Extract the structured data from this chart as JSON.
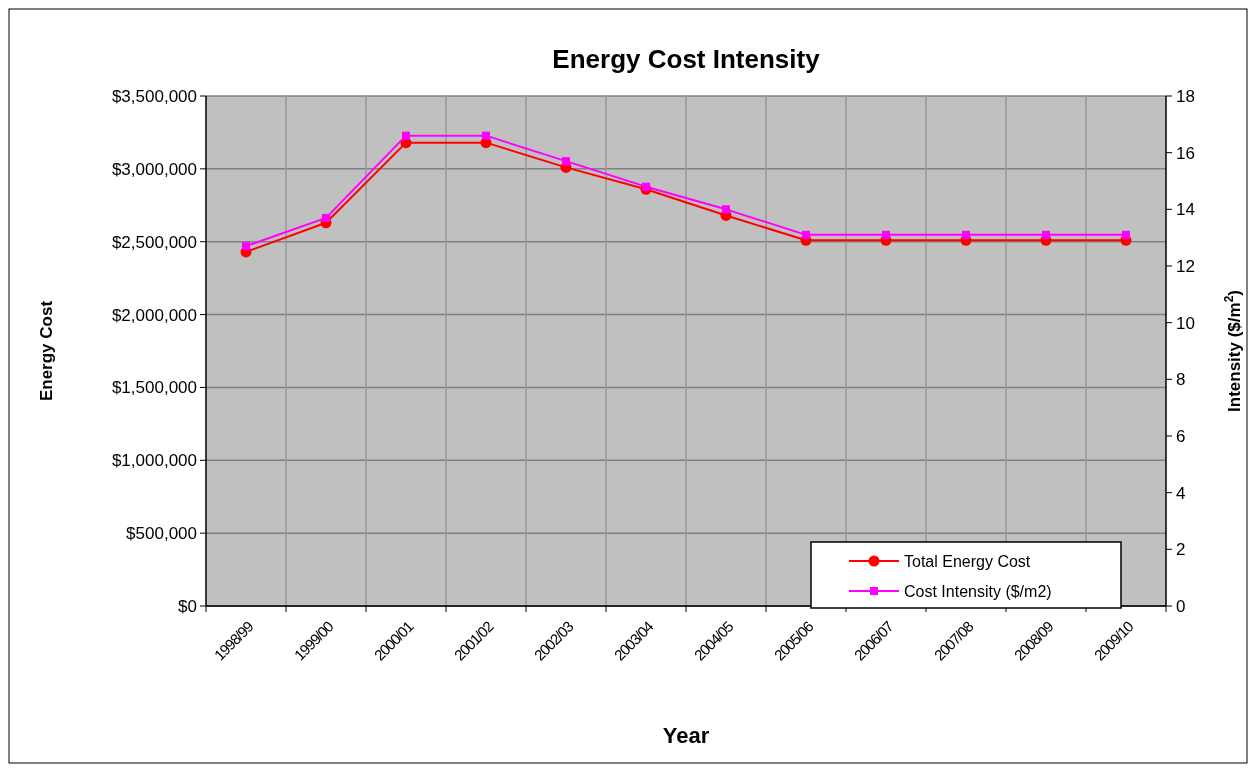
{
  "chart_data": {
    "type": "line",
    "title": "Energy Cost Intensity",
    "xlabel": "Year",
    "ylabel": "Energy Cost",
    "y2label": "Intensity ($/m$^{2}$)",
    "categories": [
      "1998/99",
      "1999/00",
      "2000/01",
      "2001/02",
      "2002/03",
      "2003/04",
      "2004/05",
      "2005/06",
      "2006/07",
      "2007/08",
      "2008/09",
      "2009/10"
    ],
    "series": [
      {
        "name": "Total Energy Cost",
        "color": "#ff0000",
        "marker": "circle",
        "values": [
          2430000,
          2630000,
          3180000,
          3180000,
          3010000,
          2860000,
          2680000,
          2510000,
          2510000,
          2510000,
          2510000,
          2510000
        ]
      },
      {
        "name": "Cost Intensity ($/m2)",
        "color": "#ff00ff",
        "marker": "square",
        "axis": "y2",
        "values": [
          12.7,
          13.7,
          16.6,
          16.6,
          15.7,
          14.8,
          14.0,
          13.1,
          13.1,
          13.1,
          13.1,
          13.1
        ]
      }
    ],
    "ylim": [
      0,
      3500000
    ],
    "yticks": [
      {
        "value": 0,
        "label": "$0"
      },
      {
        "value": 500000,
        "label": "$500,000"
      },
      {
        "value": 1000000,
        "label": "$1,000,000"
      },
      {
        "value": 1500000,
        "label": "$1,500,000"
      },
      {
        "value": 2000000,
        "label": "$2,000,000"
      },
      {
        "value": 2500000,
        "label": "$2,500,000"
      },
      {
        "value": 3000000,
        "label": "$3,000,000"
      },
      {
        "value": 3500000,
        "label": "$3,500,000"
      }
    ],
    "y2lim": [
      0,
      18
    ],
    "y2ticks": [
      0,
      2,
      4,
      6,
      8,
      10,
      12,
      14,
      16,
      18
    ],
    "grid": true,
    "legend": "bottom right"
  }
}
